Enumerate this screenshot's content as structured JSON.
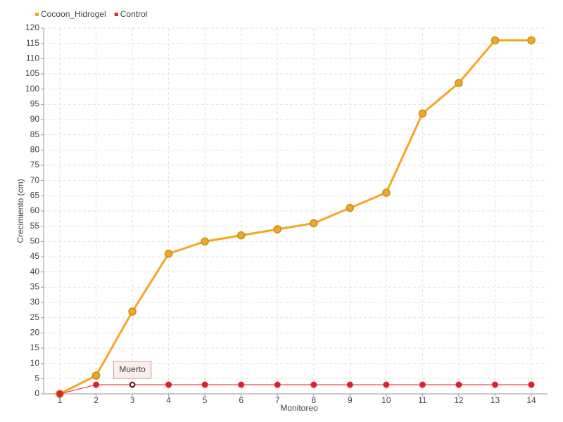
{
  "chart_data": {
    "type": "line",
    "x_label": "Monitoreo",
    "y_label": "Crecimiento (cm)",
    "categories": [
      "1",
      "2",
      "3",
      "4",
      "5",
      "6",
      "7",
      "8",
      "9",
      "10",
      "11",
      "12",
      "13",
      "14"
    ],
    "series": [
      {
        "name": "Cocoon_Hidrogel",
        "color": "#f5a623",
        "values": [
          0,
          6,
          27,
          46,
          50,
          52,
          54,
          56,
          61,
          66,
          92,
          102,
          116,
          116
        ]
      },
      {
        "name": "Control",
        "color": "#e0202e",
        "values": [
          0,
          3,
          3,
          3,
          3,
          3,
          3,
          3,
          3,
          3,
          3,
          3,
          3,
          3
        ]
      }
    ],
    "ylim": [
      0,
      120
    ],
    "yticks": [
      0,
      5,
      10,
      15,
      20,
      25,
      30,
      35,
      40,
      45,
      50,
      55,
      60,
      65,
      70,
      75,
      80,
      85,
      90,
      95,
      100,
      105,
      110,
      115,
      120
    ],
    "grid": true,
    "legend": "top-left",
    "annotations": [
      {
        "text": "Muerto",
        "series": "Control",
        "x": "3"
      }
    ]
  }
}
